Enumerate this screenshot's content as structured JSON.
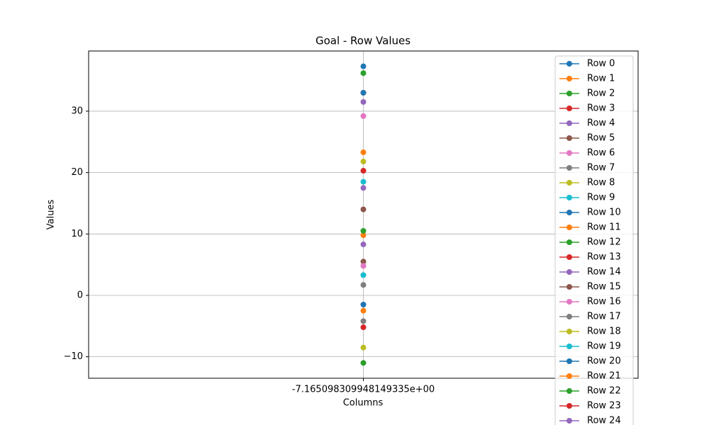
{
  "chart_data": {
    "type": "line",
    "title": "Goal - Row Values",
    "x_label": "Columns",
    "y_label": "Values",
    "categories": [
      "-7.165098309948149335e+00"
    ],
    "ylim": [
      -13.5,
      39.8
    ],
    "yticks": [
      {
        "value": -10,
        "label": "−10"
      },
      0,
      10,
      20,
      30
    ],
    "grid": true,
    "legend": "upper right",
    "series": [
      {
        "name": "Row 0",
        "color": "#1f77b4",
        "values": [
          37.3
        ]
      },
      {
        "name": "Row 1",
        "color": "#ff7f0e",
        "values": [
          23.3
        ]
      },
      {
        "name": "Row 2",
        "color": "#2ca02c",
        "values": [
          -11.0
        ]
      },
      {
        "name": "Row 3",
        "color": "#d62728",
        "values": [
          33.0
        ]
      },
      {
        "name": "Row 4",
        "color": "#9467bd",
        "values": [
          31.5
        ]
      },
      {
        "name": "Row 5",
        "color": "#8c564b",
        "values": [
          5.5
        ]
      },
      {
        "name": "Row 6",
        "color": "#e377c2",
        "values": [
          29.2
        ]
      },
      {
        "name": "Row 7",
        "color": "#7f7f7f",
        "values": [
          1.7
        ]
      },
      {
        "name": "Row 8",
        "color": "#bcbd22",
        "values": [
          -8.5
        ]
      },
      {
        "name": "Row 9",
        "color": "#17becf",
        "values": [
          3.3
        ]
      },
      {
        "name": "Row 10",
        "color": "#1f77b4",
        "values": [
          33.0
        ]
      },
      {
        "name": "Row 11",
        "color": "#ff7f0e",
        "values": [
          -2.5
        ]
      },
      {
        "name": "Row 12",
        "color": "#2ca02c",
        "values": [
          36.2
        ]
      },
      {
        "name": "Row 13",
        "color": "#d62728",
        "values": [
          -5.2
        ]
      },
      {
        "name": "Row 14",
        "color": "#9467bd",
        "values": [
          8.3
        ]
      },
      {
        "name": "Row 15",
        "color": "#8c564b",
        "values": [
          14.0
        ]
      },
      {
        "name": "Row 16",
        "color": "#e377c2",
        "values": [
          4.8
        ]
      },
      {
        "name": "Row 17",
        "color": "#7f7f7f",
        "values": [
          -4.2
        ]
      },
      {
        "name": "Row 18",
        "color": "#bcbd22",
        "values": [
          21.8
        ]
      },
      {
        "name": "Row 19",
        "color": "#17becf",
        "values": [
          18.5
        ]
      },
      {
        "name": "Row 20",
        "color": "#1f77b4",
        "values": [
          -1.5
        ]
      },
      {
        "name": "Row 21",
        "color": "#ff7f0e",
        "values": [
          9.8
        ]
      },
      {
        "name": "Row 22",
        "color": "#2ca02c",
        "values": [
          10.5
        ]
      },
      {
        "name": "Row 23",
        "color": "#d62728",
        "values": [
          20.3
        ]
      },
      {
        "name": "Row 24",
        "color": "#9467bd",
        "values": [
          17.5
        ]
      }
    ]
  }
}
